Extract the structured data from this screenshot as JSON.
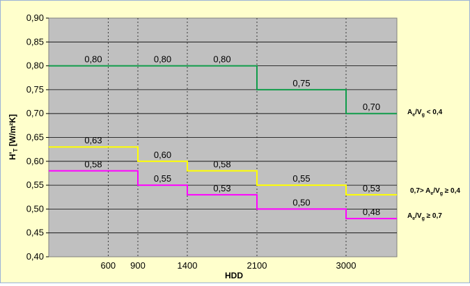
{
  "chart_data": {
    "type": "line",
    "step": true,
    "title": "",
    "xlabel": "HDD",
    "ylabel": "H'T [W/m²K]",
    "ylim": [
      0.4,
      0.9
    ],
    "y_ticks": [
      "0,40",
      "0,45",
      "0,50",
      "0,55",
      "0,60",
      "0,65",
      "0,70",
      "0,75",
      "0,80",
      "0,85",
      "0,90"
    ],
    "x_ticks": [
      600,
      900,
      1400,
      2100,
      3000
    ],
    "x_range": [
      0,
      3500
    ],
    "grid": true,
    "plot_background": "#c0c0c0",
    "legend_position": "right",
    "series": [
      {
        "name": "Ae/Vg < 0,4",
        "color": "#109c4a",
        "segments": [
          {
            "x0": 0,
            "x1": 900,
            "y": 0.8,
            "label": "0,80"
          },
          {
            "x0": 900,
            "x1": 1400,
            "y": 0.8,
            "label": "0,80"
          },
          {
            "x0": 1400,
            "x1": 2100,
            "y": 0.8,
            "label": "0,80"
          },
          {
            "x0": 2100,
            "x1": 3000,
            "y": 0.75,
            "label": "0,75"
          },
          {
            "x0": 3000,
            "x1": 3500,
            "y": 0.7,
            "label": "0,70"
          }
        ]
      },
      {
        "name": "0,7> Ae/Vg ≥ 0,4",
        "color": "#ffff00",
        "segments": [
          {
            "x0": 0,
            "x1": 900,
            "y": 0.63,
            "label": "0,63"
          },
          {
            "x0": 900,
            "x1": 1400,
            "y": 0.6,
            "label": "0,60"
          },
          {
            "x0": 1400,
            "x1": 2100,
            "y": 0.58,
            "label": "0,58"
          },
          {
            "x0": 2100,
            "x1": 3000,
            "y": 0.55,
            "label": "0,55"
          },
          {
            "x0": 3000,
            "x1": 3500,
            "y": 0.53,
            "label": "0,53"
          }
        ]
      },
      {
        "name": "Ae/Vg ≥ 0,7",
        "color": "#ff00ff",
        "segments": [
          {
            "x0": 0,
            "x1": 900,
            "y": 0.58,
            "label": "0,58"
          },
          {
            "x0": 900,
            "x1": 1400,
            "y": 0.55,
            "label": "0,55"
          },
          {
            "x0": 1400,
            "x1": 2100,
            "y": 0.53,
            "label": "0,53"
          },
          {
            "x0": 2100,
            "x1": 3000,
            "y": 0.5,
            "label": "0,50"
          },
          {
            "x0": 3000,
            "x1": 3500,
            "y": 0.48,
            "label": "0,48"
          }
        ]
      }
    ]
  }
}
